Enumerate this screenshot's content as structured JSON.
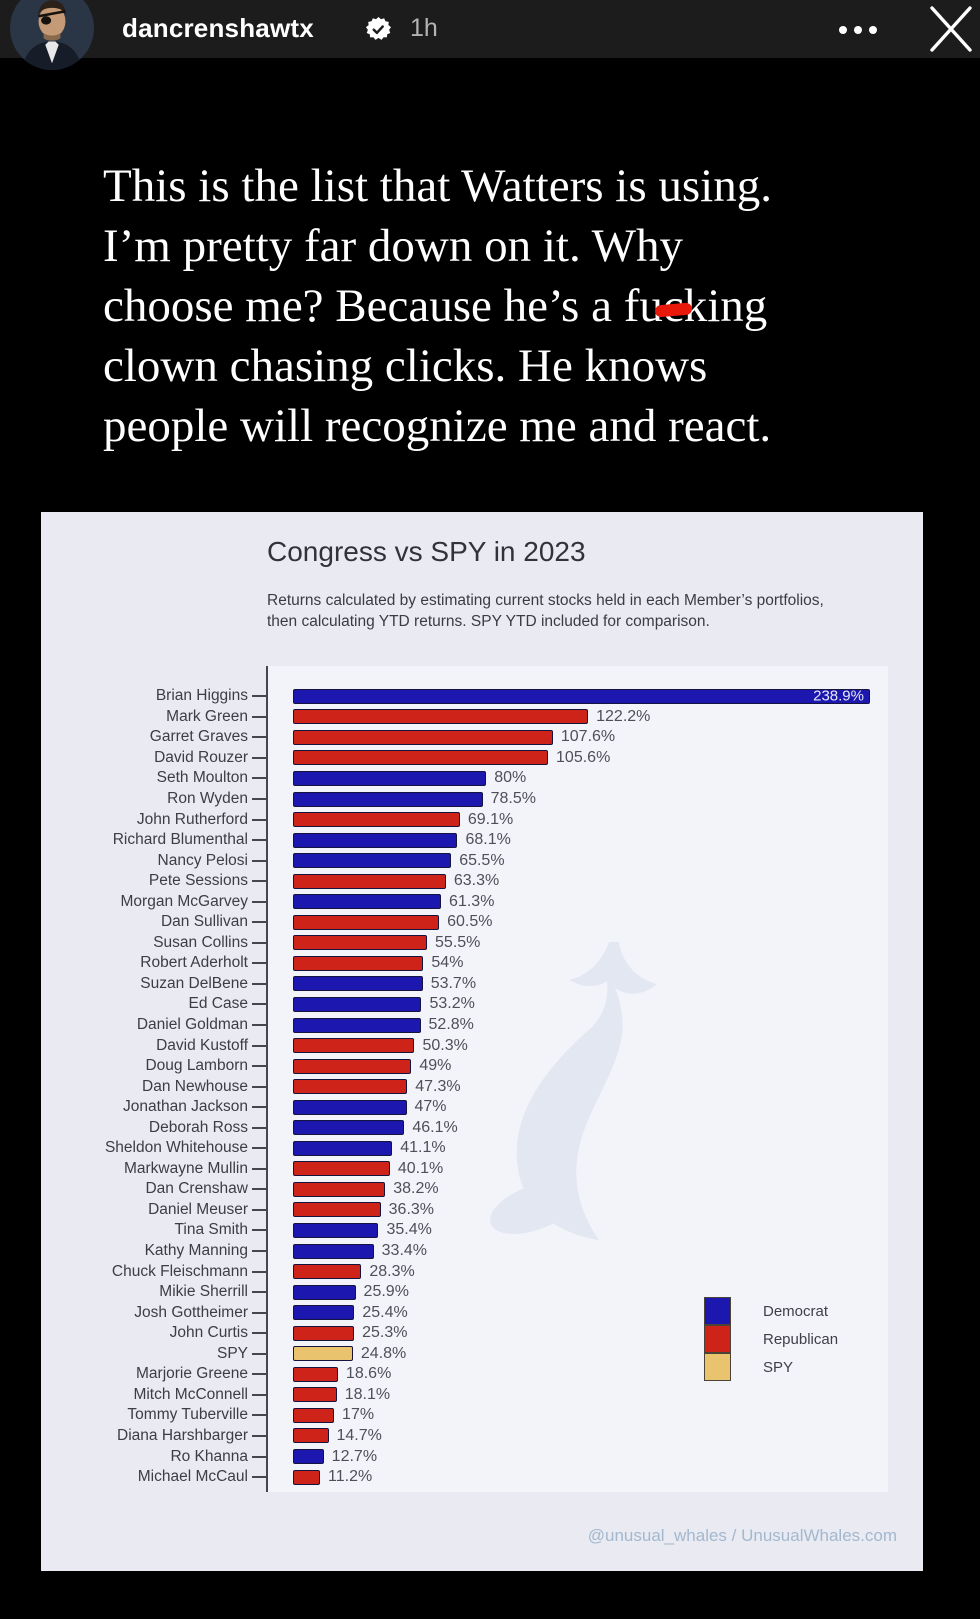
{
  "header": {
    "username": "dancrenshawtx",
    "timestamp": "1h"
  },
  "story_text": {
    "line1": "This is the list that Watters is using.",
    "line2": "I’m pretty far down on it. Why",
    "line3_pre": "choose me? Because he’s a fu",
    "line3_marked": "c",
    "line3_post": "king",
    "line4": "clown chasing clicks. He knows",
    "line5": "people will recognize me and react."
  },
  "chart": {
    "title": "Congress vs SPY in 2023",
    "subtitle": "Returns calculated by estimating current stocks held in each Member’s portfolios, then calculating YTD returns. SPY YTD included for comparison.",
    "legend": [
      {
        "label": "Democrat",
        "color": "#1c17ae"
      },
      {
        "label": "Republican",
        "color": "#cd2318"
      },
      {
        "label": "SPY",
        "color": "#eac36e"
      }
    ],
    "attribution": "@unusual_whales / UnusualWhales.com"
  },
  "chart_data": {
    "type": "bar",
    "orientation": "horizontal",
    "title": "Congress vs SPY in 2023",
    "xlabel": "",
    "ylabel": "",
    "xlim": [
      0,
      250
    ],
    "grid": false,
    "legend_position": "lower right",
    "party_colors": {
      "D": "#1c17ae",
      "R": "#cd2318",
      "SPY": "#eac36e"
    },
    "members": [
      {
        "name": "Brian Higgins",
        "value": 238.9,
        "label": "238.9%",
        "party": "D"
      },
      {
        "name": "Mark Green",
        "value": 122.2,
        "label": "122.2%",
        "party": "R"
      },
      {
        "name": "Garret Graves",
        "value": 107.6,
        "label": "107.6%",
        "party": "R"
      },
      {
        "name": "David Rouzer",
        "value": 105.6,
        "label": "105.6%",
        "party": "R"
      },
      {
        "name": "Seth Moulton",
        "value": 80,
        "label": "80%",
        "party": "D"
      },
      {
        "name": "Ron Wyden",
        "value": 78.5,
        "label": "78.5%",
        "party": "D"
      },
      {
        "name": "John Rutherford",
        "value": 69.1,
        "label": "69.1%",
        "party": "R"
      },
      {
        "name": "Richard Blumenthal",
        "value": 68.1,
        "label": "68.1%",
        "party": "D"
      },
      {
        "name": "Nancy Pelosi",
        "value": 65.5,
        "label": "65.5%",
        "party": "D"
      },
      {
        "name": "Pete Sessions",
        "value": 63.3,
        "label": "63.3%",
        "party": "R"
      },
      {
        "name": "Morgan McGarvey",
        "value": 61.3,
        "label": "61.3%",
        "party": "D"
      },
      {
        "name": "Dan Sullivan",
        "value": 60.5,
        "label": "60.5%",
        "party": "R"
      },
      {
        "name": "Susan Collins",
        "value": 55.5,
        "label": "55.5%",
        "party": "R"
      },
      {
        "name": "Robert Aderholt",
        "value": 54,
        "label": "54%",
        "party": "R"
      },
      {
        "name": "Suzan DelBene",
        "value": 53.7,
        "label": "53.7%",
        "party": "D"
      },
      {
        "name": "Ed Case",
        "value": 53.2,
        "label": "53.2%",
        "party": "D"
      },
      {
        "name": "Daniel Goldman",
        "value": 52.8,
        "label": "52.8%",
        "party": "D"
      },
      {
        "name": "David Kustoff",
        "value": 50.3,
        "label": "50.3%",
        "party": "R"
      },
      {
        "name": "Doug Lamborn",
        "value": 49,
        "label": "49%",
        "party": "R"
      },
      {
        "name": "Dan Newhouse",
        "value": 47.3,
        "label": "47.3%",
        "party": "R"
      },
      {
        "name": "Jonathan Jackson",
        "value": 47,
        "label": "47%",
        "party": "D"
      },
      {
        "name": "Deborah Ross",
        "value": 46.1,
        "label": "46.1%",
        "party": "D"
      },
      {
        "name": "Sheldon Whitehouse",
        "value": 41.1,
        "label": "41.1%",
        "party": "D"
      },
      {
        "name": "Markwayne Mullin",
        "value": 40.1,
        "label": "40.1%",
        "party": "R"
      },
      {
        "name": "Dan Crenshaw",
        "value": 38.2,
        "label": "38.2%",
        "party": "R"
      },
      {
        "name": "Daniel Meuser",
        "value": 36.3,
        "label": "36.3%",
        "party": "R"
      },
      {
        "name": "Tina Smith",
        "value": 35.4,
        "label": "35.4%",
        "party": "D"
      },
      {
        "name": "Kathy Manning",
        "value": 33.4,
        "label": "33.4%",
        "party": "D"
      },
      {
        "name": "Chuck Fleischmann",
        "value": 28.3,
        "label": "28.3%",
        "party": "R"
      },
      {
        "name": "Mikie Sherrill",
        "value": 25.9,
        "label": "25.9%",
        "party": "D"
      },
      {
        "name": "Josh Gottheimer",
        "value": 25.4,
        "label": "25.4%",
        "party": "D"
      },
      {
        "name": "John Curtis",
        "value": 25.3,
        "label": "25.3%",
        "party": "R"
      },
      {
        "name": "SPY",
        "value": 24.8,
        "label": "24.8%",
        "party": "SPY"
      },
      {
        "name": "Marjorie Greene",
        "value": 18.6,
        "label": "18.6%",
        "party": "R"
      },
      {
        "name": "Mitch McConnell",
        "value": 18.1,
        "label": "18.1%",
        "party": "R"
      },
      {
        "name": "Tommy Tuberville",
        "value": 17,
        "label": "17%",
        "party": "R"
      },
      {
        "name": "Diana Harshbarger",
        "value": 14.7,
        "label": "14.7%",
        "party": "R"
      },
      {
        "name": "Ro Khanna",
        "value": 12.7,
        "label": "12.7%",
        "party": "D"
      },
      {
        "name": "Michael McCaul",
        "value": 11.2,
        "label": "11.2%",
        "party": "R"
      }
    ]
  }
}
